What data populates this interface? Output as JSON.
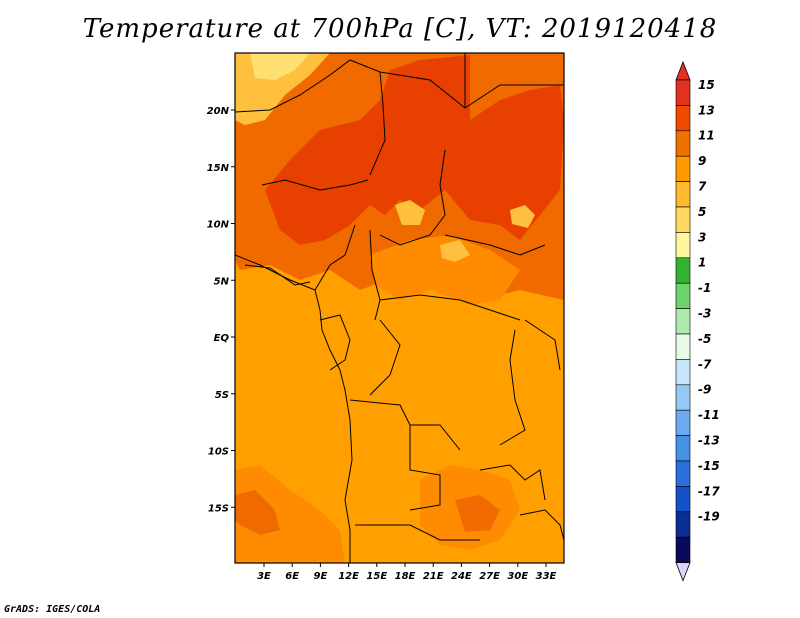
{
  "title": "Temperature at 700hPa [C], VT: 2019120418",
  "credit": "GrADS: IGES/COLA",
  "colors": {
    "base": "#ffa000",
    "warm_9_11": "#ff8c00",
    "warm_11_13": "#f06a00",
    "warm_13_15": "#e84000",
    "cool_7_9": "#ffc040",
    "cool_5_7": "#ffe070"
  },
  "y_ticks": [
    {
      "label": "20N",
      "lat": 20
    },
    {
      "label": "15N",
      "lat": 15
    },
    {
      "label": "10N",
      "lat": 10
    },
    {
      "label": "5N",
      "lat": 5
    },
    {
      "label": "EQ",
      "lat": 0
    },
    {
      "label": "5S",
      "lat": -5
    },
    {
      "label": "10S",
      "lat": -10
    },
    {
      "label": "15S",
      "lat": -15
    }
  ],
  "x_ticks": [
    {
      "label": "3E",
      "lon": 3
    },
    {
      "label": "6E",
      "lon": 6
    },
    {
      "label": "9E",
      "lon": 9
    },
    {
      "label": "12E",
      "lon": 12
    },
    {
      "label": "15E",
      "lon": 15
    },
    {
      "label": "18E",
      "lon": 18
    },
    {
      "label": "21E",
      "lon": 21
    },
    {
      "label": "24E",
      "lon": 24
    },
    {
      "label": "27E",
      "lon": 27
    },
    {
      "label": "30E",
      "lon": 30
    },
    {
      "label": "33E",
      "lon": 33
    }
  ],
  "colorbar": [
    {
      "label": "15",
      "color": "#e0321e"
    },
    {
      "label": "13",
      "color": "#f04a00"
    },
    {
      "label": "11",
      "color": "#f07000"
    },
    {
      "label": "9",
      "color": "#ff9a00"
    },
    {
      "label": "7",
      "color": "#ffb830"
    },
    {
      "label": "5",
      "color": "#ffd860"
    },
    {
      "label": "3",
      "color": "#fff6a0"
    },
    {
      "label": "1",
      "color": "#32b432"
    },
    {
      "label": "-1",
      "color": "#6ed26e"
    },
    {
      "label": "-3",
      "color": "#aeeaae"
    },
    {
      "label": "-5",
      "color": "#e6fae6"
    },
    {
      "label": "-7",
      "color": "#c8e6fa"
    },
    {
      "label": "-9",
      "color": "#96c8f5"
    },
    {
      "label": "-11",
      "color": "#6eaaf0"
    },
    {
      "label": "-13",
      "color": "#4690e6"
    },
    {
      "label": "-15",
      "color": "#2a70dc"
    },
    {
      "label": "-17",
      "color": "#1450c8"
    },
    {
      "label": "-19",
      "color": "#0a2e96"
    },
    {
      "label": "",
      "color": "#0a0a5a"
    },
    {
      "label": "",
      "color": "#dcd2fa"
    }
  ]
}
